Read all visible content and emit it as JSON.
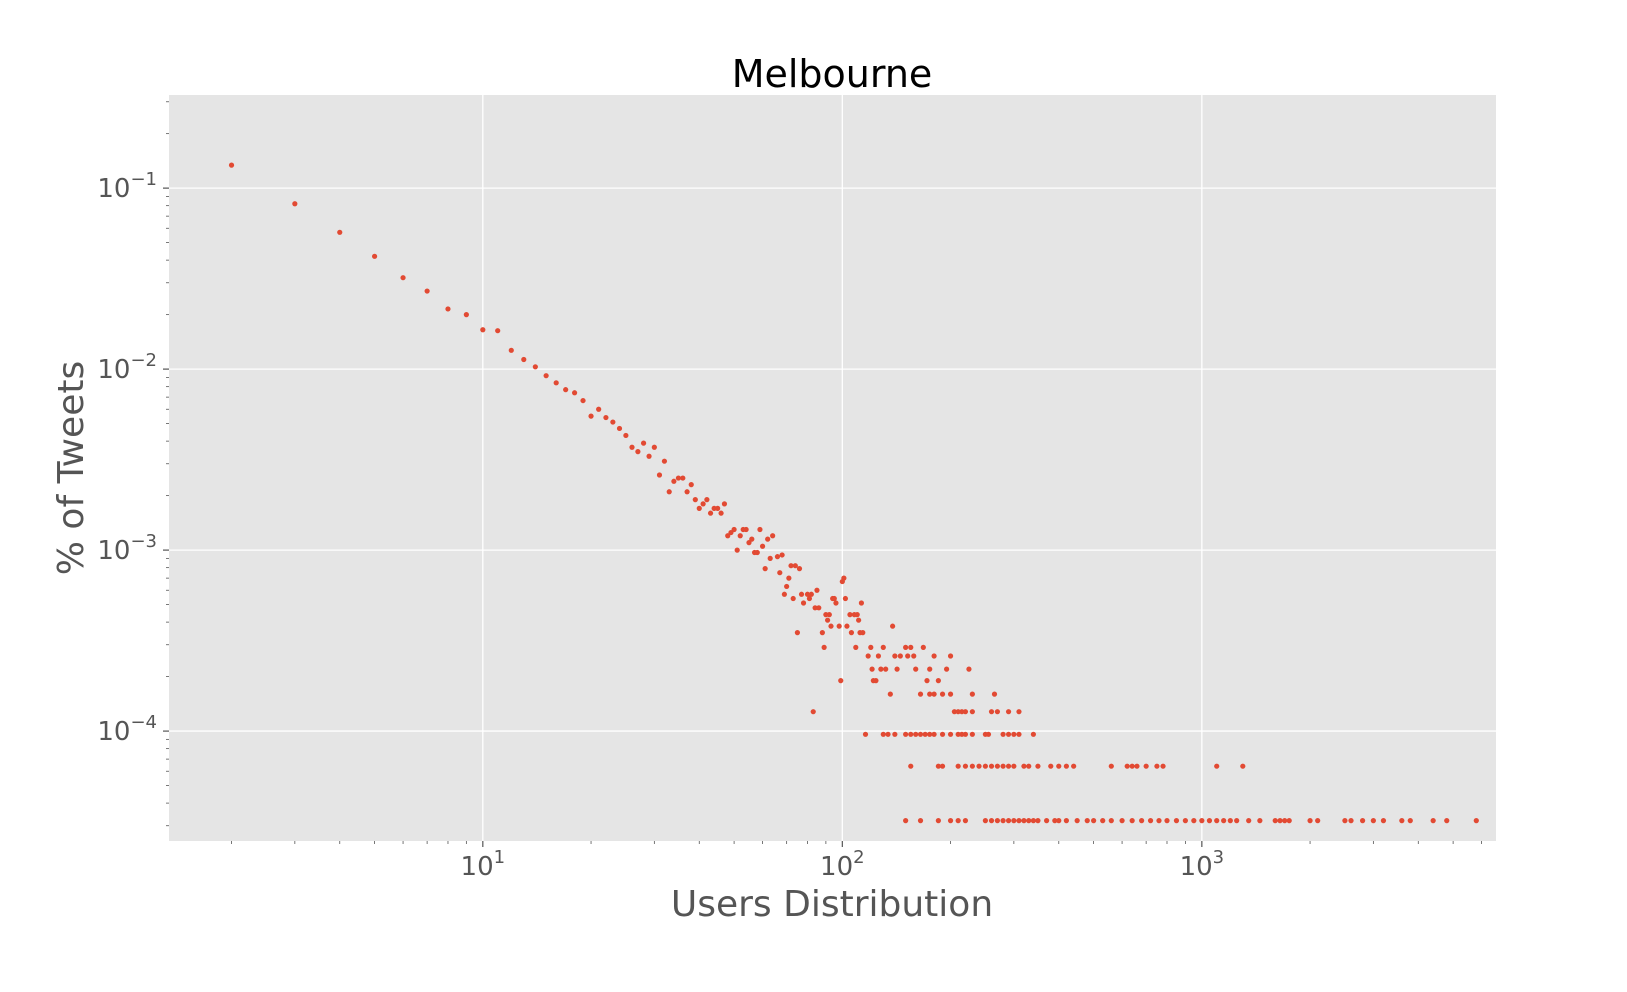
{
  "chart_data": {
    "type": "scatter",
    "title": "Melbourne",
    "xlabel": "Users Distribution",
    "ylabel": "% of Tweets",
    "xscale": "log",
    "yscale": "log",
    "xlim": [
      1.34,
      6580
    ],
    "ylim": [
      2.47e-05,
      0.327
    ],
    "grid": true,
    "colors": {
      "points": "#e24a33",
      "background": "#e5e5e5",
      "grid": "#ffffff",
      "text": "#555555"
    },
    "x_ticks": [
      {
        "value": 10,
        "base": "10",
        "exp": "1"
      },
      {
        "value": 100,
        "base": "10",
        "exp": "2"
      },
      {
        "value": 1000,
        "base": "10",
        "exp": "3"
      }
    ],
    "y_ticks": [
      {
        "value": 0.1,
        "base": "10",
        "exp": "−1"
      },
      {
        "value": 0.01,
        "base": "10",
        "exp": "−2"
      },
      {
        "value": 0.001,
        "base": "10",
        "exp": "−3"
      },
      {
        "value": 0.0001,
        "base": "10",
        "exp": "−4"
      }
    ],
    "points": [
      [
        2,
        0.134
      ],
      [
        3,
        0.082
      ],
      [
        4,
        0.057
      ],
      [
        5,
        0.042
      ],
      [
        6,
        0.032
      ],
      [
        7,
        0.027
      ],
      [
        8,
        0.0215
      ],
      [
        9,
        0.02
      ],
      [
        10,
        0.0165
      ],
      [
        11,
        0.0163
      ],
      [
        12,
        0.0127
      ],
      [
        13,
        0.0113
      ],
      [
        14,
        0.0103
      ],
      [
        15,
        0.0092
      ],
      [
        16,
        0.0084
      ],
      [
        17,
        0.0077
      ],
      [
        18,
        0.0074
      ],
      [
        19,
        0.0067
      ],
      [
        20,
        0.0055
      ],
      [
        21,
        0.006
      ],
      [
        22,
        0.0054
      ],
      [
        23,
        0.0051
      ],
      [
        24,
        0.0047
      ],
      [
        25,
        0.0043
      ],
      [
        26,
        0.0037
      ],
      [
        27,
        0.0035
      ],
      [
        28,
        0.0039
      ],
      [
        29,
        0.0033
      ],
      [
        30,
        0.0037
      ],
      [
        31,
        0.0026
      ],
      [
        32,
        0.0031
      ],
      [
        33,
        0.0021
      ],
      [
        34,
        0.0024
      ],
      [
        35,
        0.0025
      ],
      [
        36,
        0.0025
      ],
      [
        37,
        0.0021
      ],
      [
        38,
        0.0023
      ],
      [
        39,
        0.0019
      ],
      [
        40,
        0.0017
      ],
      [
        41,
        0.0018
      ],
      [
        42,
        0.0019
      ],
      [
        43,
        0.0016
      ],
      [
        44,
        0.0017
      ],
      [
        45,
        0.0017
      ],
      [
        46,
        0.0016
      ],
      [
        47,
        0.0018
      ],
      [
        48,
        0.0012
      ],
      [
        49,
        0.00125
      ],
      [
        50,
        0.0013
      ],
      [
        51,
        0.001
      ],
      [
        52,
        0.0012
      ],
      [
        53,
        0.0013
      ],
      [
        54,
        0.0013
      ],
      [
        55,
        0.0011
      ],
      [
        56,
        0.00115
      ],
      [
        57,
        0.00097
      ],
      [
        58,
        0.00097
      ],
      [
        59,
        0.0013
      ],
      [
        60,
        0.00105
      ],
      [
        61,
        0.00079
      ],
      [
        62,
        0.00115
      ],
      [
        63,
        0.0009
      ],
      [
        64,
        0.0012
      ],
      [
        66,
        0.00092
      ],
      [
        67,
        0.00075
      ],
      [
        68,
        0.00094
      ],
      [
        69,
        0.00057
      ],
      [
        70,
        0.00063
      ],
      [
        71,
        0.0007
      ],
      [
        72,
        0.00082
      ],
      [
        73,
        0.00054
      ],
      [
        74,
        0.00082
      ],
      [
        75,
        0.00035
      ],
      [
        76,
        0.00079
      ],
      [
        77,
        0.00057
      ],
      [
        78,
        0.00051
      ],
      [
        80,
        0.00057
      ],
      [
        81,
        0.00054
      ],
      [
        82,
        0.00057
      ],
      [
        83,
        0.000128
      ],
      [
        84,
        0.00048
      ],
      [
        85,
        0.0006
      ],
      [
        86,
        0.00048
      ],
      [
        88,
        0.00035
      ],
      [
        89,
        0.00029
      ],
      [
        90,
        0.00044
      ],
      [
        91,
        0.00041
      ],
      [
        92,
        0.00044
      ],
      [
        93,
        0.00038
      ],
      [
        94,
        0.00054
      ],
      [
        95,
        0.00054
      ],
      [
        96,
        0.00051
      ],
      [
        98,
        0.00038
      ],
      [
        99,
        0.00019
      ],
      [
        100,
        0.00067
      ],
      [
        101,
        0.0007
      ],
      [
        102,
        0.00054
      ],
      [
        103,
        0.00038
      ],
      [
        105,
        0.00044
      ],
      [
        106,
        0.00035
      ],
      [
        108,
        0.00044
      ],
      [
        109,
        0.00029
      ],
      [
        110,
        0.00044
      ],
      [
        111,
        0.00041
      ],
      [
        112,
        0.00035
      ],
      [
        113,
        0.00051
      ],
      [
        114,
        0.00035
      ],
      [
        116,
        9.6e-05
      ],
      [
        118,
        0.00026
      ],
      [
        120,
        0.00029
      ],
      [
        121,
        0.00022
      ],
      [
        122,
        0.00019
      ],
      [
        124,
        0.00019
      ],
      [
        126,
        0.00026
      ],
      [
        128,
        0.00022
      ],
      [
        130,
        0.00029
      ],
      [
        132,
        0.00022
      ],
      [
        134,
        9.6e-05
      ],
      [
        136,
        0.00016
      ],
      [
        138,
        0.00038
      ],
      [
        140,
        0.00026
      ],
      [
        142,
        0.00022
      ],
      [
        145,
        0.00026
      ],
      [
        150,
        0.00029
      ],
      [
        152,
        0.00026
      ],
      [
        155,
        0.00029
      ],
      [
        158,
        0.00026
      ],
      [
        160,
        0.00022
      ],
      [
        165,
        0.00016
      ],
      [
        168,
        0.00029
      ],
      [
        172,
        0.00019
      ],
      [
        175,
        0.00022
      ],
      [
        180,
        0.00026
      ],
      [
        185,
        0.00019
      ],
      [
        195,
        0.00022
      ],
      [
        200,
        0.00026
      ],
      [
        225,
        0.00022
      ],
      [
        230,
        0.00016
      ],
      [
        175,
        0.00016
      ],
      [
        180,
        0.00016
      ],
      [
        190,
        0.00016
      ],
      [
        200,
        0.00016
      ],
      [
        265,
        0.00016
      ],
      [
        205,
        0.000128
      ],
      [
        210,
        0.000128
      ],
      [
        215,
        0.000128
      ],
      [
        220,
        0.000128
      ],
      [
        230,
        0.000128
      ],
      [
        260,
        0.000128
      ],
      [
        270,
        0.000128
      ],
      [
        290,
        0.000128
      ],
      [
        310,
        0.000128
      ],
      [
        130,
        9.6e-05
      ],
      [
        140,
        9.6e-05
      ],
      [
        150,
        9.6e-05
      ],
      [
        155,
        9.6e-05
      ],
      [
        160,
        9.6e-05
      ],
      [
        165,
        9.6e-05
      ],
      [
        170,
        9.6e-05
      ],
      [
        175,
        9.6e-05
      ],
      [
        180,
        9.6e-05
      ],
      [
        190,
        9.6e-05
      ],
      [
        200,
        9.6e-05
      ],
      [
        210,
        9.6e-05
      ],
      [
        215,
        9.6e-05
      ],
      [
        220,
        9.6e-05
      ],
      [
        230,
        9.6e-05
      ],
      [
        250,
        9.6e-05
      ],
      [
        255,
        9.6e-05
      ],
      [
        280,
        9.6e-05
      ],
      [
        290,
        9.6e-05
      ],
      [
        300,
        9.6e-05
      ],
      [
        310,
        9.6e-05
      ],
      [
        340,
        9.6e-05
      ],
      [
        155,
        6.4e-05
      ],
      [
        185,
        6.4e-05
      ],
      [
        190,
        6.4e-05
      ],
      [
        210,
        6.4e-05
      ],
      [
        220,
        6.4e-05
      ],
      [
        230,
        6.4e-05
      ],
      [
        240,
        6.4e-05
      ],
      [
        250,
        6.4e-05
      ],
      [
        260,
        6.4e-05
      ],
      [
        270,
        6.4e-05
      ],
      [
        280,
        6.4e-05
      ],
      [
        290,
        6.4e-05
      ],
      [
        300,
        6.4e-05
      ],
      [
        320,
        6.4e-05
      ],
      [
        330,
        6.4e-05
      ],
      [
        350,
        6.4e-05
      ],
      [
        380,
        6.4e-05
      ],
      [
        400,
        6.4e-05
      ],
      [
        420,
        6.4e-05
      ],
      [
        440,
        6.4e-05
      ],
      [
        560,
        6.4e-05
      ],
      [
        620,
        6.4e-05
      ],
      [
        640,
        6.4e-05
      ],
      [
        660,
        6.4e-05
      ],
      [
        700,
        6.4e-05
      ],
      [
        750,
        6.4e-05
      ],
      [
        780,
        6.4e-05
      ],
      [
        1100,
        6.4e-05
      ],
      [
        1300,
        6.4e-05
      ],
      [
        150,
        3.2e-05
      ],
      [
        165,
        3.2e-05
      ],
      [
        185,
        3.2e-05
      ],
      [
        200,
        3.2e-05
      ],
      [
        210,
        3.2e-05
      ],
      [
        220,
        3.2e-05
      ],
      [
        250,
        3.2e-05
      ],
      [
        260,
        3.2e-05
      ],
      [
        270,
        3.2e-05
      ],
      [
        280,
        3.2e-05
      ],
      [
        290,
        3.2e-05
      ],
      [
        300,
        3.2e-05
      ],
      [
        310,
        3.2e-05
      ],
      [
        320,
        3.2e-05
      ],
      [
        330,
        3.2e-05
      ],
      [
        340,
        3.2e-05
      ],
      [
        350,
        3.2e-05
      ],
      [
        370,
        3.2e-05
      ],
      [
        390,
        3.2e-05
      ],
      [
        400,
        3.2e-05
      ],
      [
        420,
        3.2e-05
      ],
      [
        450,
        3.2e-05
      ],
      [
        480,
        3.2e-05
      ],
      [
        500,
        3.2e-05
      ],
      [
        530,
        3.2e-05
      ],
      [
        560,
        3.2e-05
      ],
      [
        600,
        3.2e-05
      ],
      [
        640,
        3.2e-05
      ],
      [
        680,
        3.2e-05
      ],
      [
        720,
        3.2e-05
      ],
      [
        760,
        3.2e-05
      ],
      [
        800,
        3.2e-05
      ],
      [
        850,
        3.2e-05
      ],
      [
        900,
        3.2e-05
      ],
      [
        950,
        3.2e-05
      ],
      [
        1000,
        3.2e-05
      ],
      [
        1050,
        3.2e-05
      ],
      [
        1100,
        3.2e-05
      ],
      [
        1150,
        3.2e-05
      ],
      [
        1200,
        3.2e-05
      ],
      [
        1250,
        3.2e-05
      ],
      [
        1350,
        3.2e-05
      ],
      [
        1450,
        3.2e-05
      ],
      [
        1600,
        3.2e-05
      ],
      [
        1650,
        3.2e-05
      ],
      [
        1700,
        3.2e-05
      ],
      [
        1750,
        3.2e-05
      ],
      [
        2000,
        3.2e-05
      ],
      [
        2100,
        3.2e-05
      ],
      [
        2500,
        3.2e-05
      ],
      [
        2600,
        3.2e-05
      ],
      [
        2800,
        3.2e-05
      ],
      [
        3000,
        3.2e-05
      ],
      [
        3200,
        3.2e-05
      ],
      [
        3600,
        3.2e-05
      ],
      [
        3800,
        3.2e-05
      ],
      [
        4400,
        3.2e-05
      ],
      [
        4800,
        3.2e-05
      ],
      [
        5800,
        3.2e-05
      ]
    ]
  }
}
